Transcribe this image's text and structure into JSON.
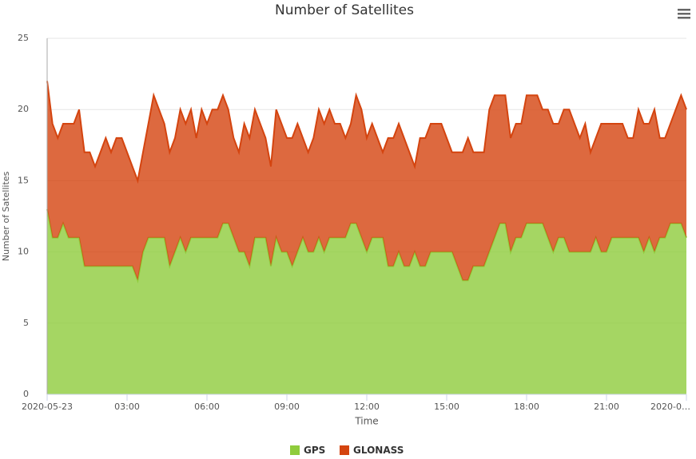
{
  "chart_data": {
    "type": "stacked_area",
    "title": "Number of Satellites",
    "x_label": "Time",
    "y_label": "Number of Satellites",
    "x": [
      0,
      0.2,
      0.4,
      0.6,
      0.8,
      1,
      1.2,
      1.4,
      1.6,
      1.8,
      2,
      2.2,
      2.4,
      2.6,
      2.8,
      3,
      3.2,
      3.4,
      3.6,
      3.8,
      4,
      4.2,
      4.4,
      4.6,
      4.8,
      5,
      5.2,
      5.4,
      5.6,
      5.8,
      6,
      6.2,
      6.4,
      6.6,
      6.8,
      7,
      7.2,
      7.4,
      7.6,
      7.8,
      8,
      8.2,
      8.4,
      8.6,
      8.8,
      9,
      9.2,
      9.4,
      9.6,
      9.8,
      10,
      10.2,
      10.4,
      10.6,
      10.8,
      11,
      11.2,
      11.4,
      11.6,
      11.8,
      12,
      12.2,
      12.4,
      12.6,
      12.8,
      13,
      13.2,
      13.4,
      13.6,
      13.8,
      14,
      14.2,
      14.4,
      14.6,
      14.8,
      15,
      15.2,
      15.4,
      15.6,
      15.8,
      16,
      16.2,
      16.4,
      16.6,
      16.8,
      17,
      17.2,
      17.4,
      17.6,
      17.8,
      18,
      18.2,
      18.4,
      18.6,
      18.8,
      19,
      19.2,
      19.4,
      19.6,
      19.8,
      20,
      20.2,
      20.4,
      20.6,
      20.8,
      21,
      21.2,
      21.4,
      21.6,
      21.8,
      22,
      22.2,
      22.4,
      22.6,
      22.8,
      23,
      23.2,
      23.4,
      23.6,
      23.8,
      24
    ],
    "series": [
      {
        "name": "GPS",
        "color": "#8fcc3c",
        "values": [
          13,
          11,
          11,
          12,
          11,
          11,
          11,
          9,
          9,
          9,
          9,
          9,
          9,
          9,
          9,
          9,
          9,
          8,
          10,
          11,
          11,
          11,
          11,
          9,
          10,
          11,
          10,
          11,
          11,
          11,
          11,
          11,
          11,
          12,
          12,
          11,
          10,
          10,
          9,
          11,
          11,
          11,
          9,
          11,
          10,
          10,
          9,
          10,
          11,
          10,
          10,
          11,
          10,
          11,
          11,
          11,
          11,
          12,
          12,
          11,
          10,
          11,
          11,
          11,
          9,
          9,
          10,
          9,
          9,
          10,
          9,
          9,
          10,
          10,
          10,
          10,
          10,
          9,
          8,
          8,
          9,
          9,
          9,
          10,
          11,
          12,
          12,
          10,
          11,
          11,
          12,
          12,
          12,
          12,
          11,
          10,
          11,
          11,
          10,
          10,
          10,
          10,
          10,
          11,
          10,
          10,
          11,
          11,
          11,
          11,
          11,
          11,
          10,
          11,
          10,
          11,
          11,
          12,
          12,
          12,
          11
        ]
      },
      {
        "name": "GLONASS",
        "color": "#d4440f",
        "values": [
          9,
          8,
          7,
          7,
          8,
          8,
          9,
          8,
          8,
          7,
          8,
          9,
          8,
          9,
          9,
          8,
          7,
          7,
          7,
          8,
          10,
          9,
          8,
          8,
          8,
          9,
          9,
          9,
          7,
          9,
          8,
          9,
          9,
          9,
          8,
          7,
          7,
          9,
          9,
          9,
          8,
          7,
          7,
          9,
          9,
          8,
          9,
          9,
          7,
          7,
          8,
          9,
          9,
          9,
          8,
          8,
          7,
          7,
          9,
          9,
          8,
          8,
          7,
          6,
          9,
          9,
          9,
          9,
          8,
          6,
          9,
          9,
          9,
          9,
          9,
          8,
          7,
          8,
          9,
          10,
          8,
          8,
          8,
          10,
          10,
          9,
          9,
          8,
          8,
          8,
          9,
          9,
          9,
          8,
          9,
          9,
          8,
          9,
          10,
          9,
          8,
          9,
          7,
          7,
          9,
          9,
          8,
          8,
          8,
          7,
          7,
          9,
          9,
          8,
          10,
          7,
          7,
          7,
          8,
          9,
          9
        ]
      }
    ],
    "xlim": [
      0,
      24
    ],
    "xticks": [
      {
        "value": 0,
        "label": "2020-05-23"
      },
      {
        "value": 3,
        "label": "03:00"
      },
      {
        "value": 6,
        "label": "06:00"
      },
      {
        "value": 9,
        "label": "09:00"
      },
      {
        "value": 12,
        "label": "12:00"
      },
      {
        "value": 15,
        "label": "15:00"
      },
      {
        "value": 18,
        "label": "18:00"
      },
      {
        "value": 21,
        "label": "21:00"
      },
      {
        "value": 24,
        "label": "2020-0…"
      }
    ],
    "ylim": [
      0,
      25
    ],
    "yticks": [
      0,
      5,
      10,
      15,
      20,
      25
    ],
    "grid": true,
    "legend": "bottom"
  }
}
